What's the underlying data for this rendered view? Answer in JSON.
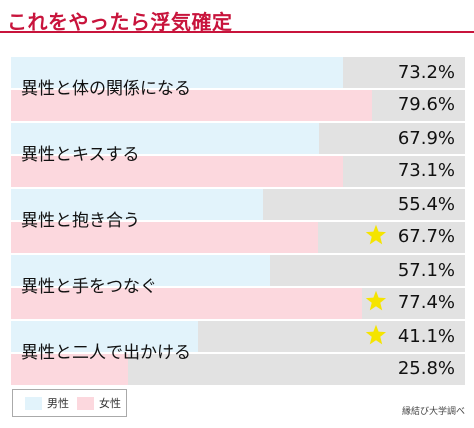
{
  "title": "これをやったら浮気確定",
  "chart_data": {
    "type": "bar",
    "orientation": "horizontal",
    "unit": "%",
    "xlim": [
      0,
      100
    ],
    "categories": [
      "異性と体の関係になる",
      "異性とキスする",
      "異性と抱き合う",
      "異性と手をつなぐ",
      "異性と二人で出かける"
    ],
    "series": [
      {
        "name": "男性",
        "color": "#e2f3fb",
        "values": [
          73.2,
          67.9,
          55.4,
          57.1,
          41.1
        ],
        "labels": [
          "73.2%",
          "67.9%",
          "55.4%",
          "57.1%",
          "41.1%"
        ]
      },
      {
        "name": "女性",
        "color": "#fcd8de",
        "values": [
          79.6,
          73.1,
          67.7,
          77.4,
          25.8
        ],
        "labels": [
          "79.6%",
          "73.1%",
          "67.7%",
          "77.4%",
          "25.8%"
        ]
      }
    ],
    "highlights": [
      {
        "category": "異性と抱き合う",
        "series": "女性"
      },
      {
        "category": "異性と手をつなぐ",
        "series": "女性"
      },
      {
        "category": "異性と二人で出かける",
        "series": "男性"
      }
    ],
    "highlight_color": "#f5e400",
    "legend": "bottom-left"
  },
  "legend": {
    "male": "男性",
    "female": "女性"
  },
  "source": "縁結び大学調べ"
}
